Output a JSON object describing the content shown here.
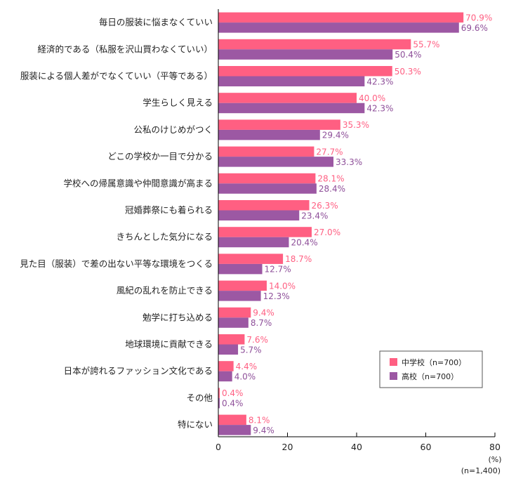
{
  "chart_data": {
    "type": "bar",
    "orientation": "horizontal",
    "title": "",
    "xlabel": "",
    "ylabel": "",
    "xlim": [
      0,
      80
    ],
    "xticks": [
      "0",
      "20",
      "40",
      "60",
      "80"
    ],
    "unit_label": "(%)",
    "sample_note": "(n=1,400)",
    "grid": false,
    "legend_position": "bottom-right",
    "categories": [
      "毎日の服装に悩まなくていい",
      "経済的である（私服を沢山買わなくていい）",
      "服装による個人差がでなくていい（平等である）",
      "学生らしく見える",
      "公私のけじめがつく",
      "どこの学校か一目で分かる",
      "学校への帰属意識や仲間意識が高まる",
      "冠婚葬祭にも着られる",
      "きちんとした気分になる",
      "見た目（服装）で差の出ない平等な環境をつくる",
      "風紀の乱れを防止できる",
      "勉学に打ち込める",
      "地球環境に貢献できる",
      "日本が誇れるファッション文化である",
      "その他",
      "特にない"
    ],
    "series": [
      {
        "name": "中学校（n=700）",
        "color": "#ff5f82",
        "label_color": "#ff5f82",
        "values": [
          70.9,
          55.7,
          50.3,
          40.0,
          35.3,
          27.7,
          28.1,
          26.3,
          27.0,
          18.7,
          14.0,
          9.4,
          7.6,
          4.4,
          0.4,
          8.1
        ],
        "labels": [
          "70.9%",
          "55.7%",
          "50.3%",
          "40.0%",
          "35.3%",
          "27.7%",
          "28.1%",
          "26.3%",
          "27.0%",
          "18.7%",
          "14.0%",
          "9.4%",
          "7.6%",
          "4.4%",
          "0.4%",
          "8.1%"
        ]
      },
      {
        "name": "高校（n=700）",
        "color": "#9c58a3",
        "label_color": "#8e4f99",
        "values": [
          69.6,
          50.4,
          42.3,
          42.3,
          29.4,
          33.3,
          28.4,
          23.4,
          20.4,
          12.7,
          12.3,
          8.7,
          5.7,
          4.0,
          0.4,
          9.4
        ],
        "labels": [
          "69.6%",
          "50.4%",
          "42.3%",
          "42.3%",
          "29.4%",
          "33.3%",
          "28.4%",
          "23.4%",
          "20.4%",
          "12.7%",
          "12.3%",
          "8.7%",
          "5.7%",
          "4.0%",
          "0.4%",
          "9.4%"
        ]
      }
    ]
  }
}
